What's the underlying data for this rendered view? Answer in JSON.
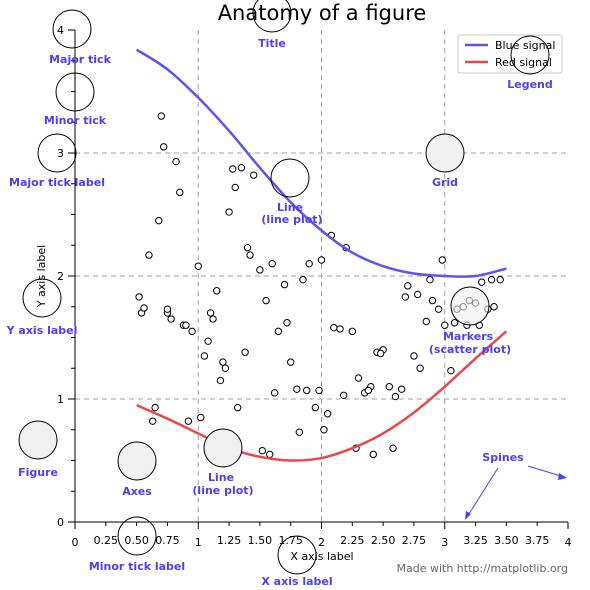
{
  "chart_data": {
    "type": "line",
    "title": "Anatomy of a figure",
    "xlabel": "X axis label",
    "ylabel": "Y axis label",
    "xlim": [
      0,
      4
    ],
    "ylim": [
      0,
      4
    ],
    "major_xticks": [
      0,
      1,
      2,
      3,
      4
    ],
    "major_xtick_labels": [
      "0",
      "1",
      "2",
      "3",
      "4"
    ],
    "minor_xticks": [
      0.25,
      0.5,
      0.75,
      1.25,
      1.5,
      1.75,
      2.25,
      2.5,
      2.75,
      3.25,
      3.5,
      3.75
    ],
    "minor_xtick_labels": [
      "0.25",
      "0.50",
      "0.75",
      "1.25",
      "1.50",
      "1.75",
      "2.25",
      "2.50",
      "2.75",
      "3.25",
      "3.50",
      "3.75"
    ],
    "major_yticks": [
      0,
      1,
      2,
      3,
      4
    ],
    "major_ytick_labels": [
      "0",
      "1",
      "2",
      "3",
      "4"
    ],
    "minor_yticks": [
      0.25,
      0.5,
      0.75,
      1.25,
      1.5,
      1.75,
      2.25,
      2.5,
      2.75,
      3.25,
      3.5,
      3.75
    ],
    "grid": true,
    "legend_position": "top-right",
    "series": [
      {
        "name": "Blue signal",
        "color": "#5a55f2",
        "x": [
          0.5,
          0.75,
          1.0,
          1.25,
          1.5,
          1.75,
          2.0,
          2.25,
          2.5,
          2.75,
          3.0,
          3.25,
          3.5
        ],
        "y": [
          3.84,
          3.68,
          3.45,
          3.18,
          2.88,
          2.6,
          2.37,
          2.19,
          2.08,
          2.02,
          2.0,
          2.0,
          2.06
        ]
      },
      {
        "name": "Red signal",
        "color": "#e84848",
        "x": [
          0.5,
          0.75,
          1.0,
          1.25,
          1.5,
          1.75,
          2.0,
          2.25,
          2.5,
          2.75,
          3.0,
          3.25,
          3.5
        ],
        "y": [
          0.95,
          0.84,
          0.72,
          0.6,
          0.53,
          0.5,
          0.52,
          0.6,
          0.72,
          0.89,
          1.1,
          1.33,
          1.55
        ]
      }
    ],
    "scatter": {
      "name": "Markers",
      "x": [
        0.7,
        0.72,
        0.68,
        0.82,
        0.75,
        0.85,
        0.88,
        0.6,
        0.52,
        0.54,
        0.56,
        0.65,
        0.75,
        0.78,
        0.9,
        0.95,
        1.0,
        1.05,
        1.1,
        1.12,
        1.15,
        1.2,
        1.25,
        1.3,
        1.28,
        1.35,
        1.4,
        1.42,
        1.45,
        1.5,
        1.55,
        1.6,
        1.65,
        1.7,
        1.75,
        1.8,
        1.85,
        1.9,
        1.95,
        2.0,
        2.05,
        2.1,
        2.15,
        2.2,
        2.25,
        2.3,
        2.35,
        2.4,
        2.45,
        2.5,
        2.55,
        2.6,
        2.65,
        2.7,
        2.75,
        2.8,
        2.85,
        2.9,
        2.95,
        3.0,
        3.05,
        3.1,
        3.15,
        3.2,
        3.25,
        3.3,
        3.35,
        3.4,
        3.45,
        0.63,
        1.02,
        1.08,
        1.18,
        1.22,
        1.38,
        1.58,
        1.62,
        1.72,
        1.82,
        1.88,
        1.98,
        2.08,
        2.18,
        2.28,
        2.38,
        2.48,
        2.58,
        2.68,
        2.78,
        2.88,
        2.98,
        3.08,
        3.18,
        3.28,
        3.38,
        0.92,
        1.32,
        1.52,
        2.02,
        2.42
      ],
      "y": [
        3.3,
        3.05,
        2.45,
        2.93,
        1.7,
        2.68,
        1.6,
        2.17,
        1.83,
        1.7,
        1.74,
        0.93,
        1.73,
        1.65,
        1.6,
        1.55,
        2.08,
        1.35,
        1.7,
        1.65,
        1.88,
        1.3,
        2.52,
        2.72,
        2.87,
        2.88,
        2.23,
        2.17,
        2.82,
        2.05,
        1.8,
        2.1,
        1.55,
        1.93,
        1.3,
        1.08,
        1.97,
        2.1,
        0.93,
        2.13,
        0.88,
        1.58,
        1.57,
        2.23,
        1.55,
        1.17,
        1.05,
        1.1,
        1.38,
        1.4,
        1.1,
        1.02,
        1.08,
        1.92,
        1.35,
        1.25,
        1.63,
        1.8,
        1.73,
        1.6,
        1.23,
        1.73,
        1.75,
        1.8,
        1.78,
        1.95,
        1.73,
        1.75,
        1.97,
        0.82,
        0.85,
        1.47,
        1.15,
        1.25,
        1.38,
        0.55,
        1.05,
        1.62,
        0.73,
        1.07,
        1.07,
        2.33,
        1.03,
        0.6,
        1.07,
        1.37,
        0.6,
        1.83,
        1.85,
        1.97,
        2.13,
        1.62,
        1.6,
        1.6,
        1.97,
        0.82,
        0.93,
        0.58,
        0.75,
        0.55
      ]
    },
    "annotations": {
      "major_tick": "Major tick",
      "minor_tick": "Minor tick",
      "major_tick_label": "Major tick label",
      "y_axis_label": "Y axis label",
      "figure": "Figure",
      "axes": "Axes",
      "line": "Line\n(line plot)",
      "line_plot_upper": "Line\n(line plot)",
      "title": "Title",
      "grid": "Grid",
      "legend": "Legend",
      "markers": "Markers\n(scatter plot)",
      "spines": "Spines",
      "minor_tick_label": "Minor tick label",
      "x_axis_label": "X axis label"
    },
    "credit": "Made with http://matplotlib.org"
  }
}
